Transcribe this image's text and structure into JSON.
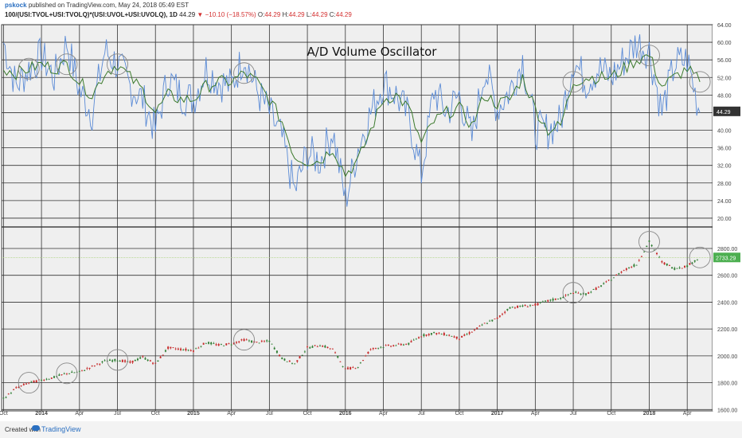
{
  "header": {
    "author": "pskock",
    "published_text": "published on TradingView.com, May 24, 2018 05:49 EST",
    "symbol": "100/(USI:TVOL+USI:TVOLQ)*(USI:UVOL+USI:UVOLQ), 1D",
    "last": "44.29",
    "change": "−10.10 (−18.57%)",
    "o_label": "O:",
    "o": "44.29",
    "h_label": "H:",
    "h": "44.29",
    "l_label": "L:",
    "l": "44.29",
    "c_label": "C:",
    "c": "44.29"
  },
  "footer": {
    "created": "Created with",
    "brand": "TradingView"
  },
  "colors": {
    "osc_line": "#5b8bd6",
    "osc_ma": "#3c7a2d",
    "price_up": "#2e7d32",
    "price_down": "#c62828",
    "grid": "#333333",
    "bg": "#efefef",
    "badge_price": "#4caf50",
    "badge_osc": "#333333"
  },
  "chart_data": [
    {
      "type": "line",
      "title": "A/D Volume Oscillator",
      "ylim": [
        18,
        64
      ],
      "yticks": [
        20,
        24,
        28,
        32,
        36,
        40,
        44,
        48,
        52,
        56,
        60,
        64
      ],
      "ytick_labels": [
        "20.00",
        "24.00",
        "28.00",
        "32.00",
        "36.00",
        "40.00",
        "44.00",
        "48.00",
        "52.00",
        "56.00",
        "60.00",
        "64.00"
      ],
      "last_value_label": "44.29",
      "series": [
        {
          "x": [
            "2013-10",
            "2013-11",
            "2013-12",
            "2014-01",
            "2014-02",
            "2014-03",
            "2014-04",
            "2014-05",
            "2014-06",
            "2014-07",
            "2014-08",
            "2014-09",
            "2014-10",
            "2014-11",
            "2014-12",
            "2015-01",
            "2015-02",
            "2015-03",
            "2015-04",
            "2015-05",
            "2015-06",
            "2015-07",
            "2015-08",
            "2015-09",
            "2015-10",
            "2015-11",
            "2015-12",
            "2016-01",
            "2016-02",
            "2016-03",
            "2016-04",
            "2016-05",
            "2016-06",
            "2016-07",
            "2016-08",
            "2016-09",
            "2016-10",
            "2016-11",
            "2016-12",
            "2017-01",
            "2017-02",
            "2017-03",
            "2017-04",
            "2017-05",
            "2017-06",
            "2017-07",
            "2017-08",
            "2017-09",
            "2017-10",
            "2017-11",
            "2017-12",
            "2018-01",
            "2018-02",
            "2018-03",
            "2018-04",
            "2018-05"
          ],
          "values": [
            60,
            50,
            54,
            57,
            52,
            60,
            49,
            44,
            58,
            55,
            50,
            47,
            40,
            52,
            48,
            47,
            54,
            51,
            50,
            57,
            49,
            44,
            38,
            26,
            35,
            33,
            40,
            24,
            36,
            44,
            51,
            48,
            43,
            30,
            49,
            44,
            48,
            38,
            54,
            45,
            49,
            56,
            40,
            40,
            42,
            56,
            51,
            54,
            52,
            56,
            60,
            58,
            44,
            55,
            56,
            44
          ]
        },
        {
          "x": [
            "2013-10",
            "2013-11",
            "2013-12",
            "2014-01",
            "2014-02",
            "2014-03",
            "2014-04",
            "2014-05",
            "2014-06",
            "2014-07",
            "2014-08",
            "2014-09",
            "2014-10",
            "2014-11",
            "2014-12",
            "2015-01",
            "2015-02",
            "2015-03",
            "2015-04",
            "2015-05",
            "2015-06",
            "2015-07",
            "2015-08",
            "2015-09",
            "2015-10",
            "2015-11",
            "2015-12",
            "2016-01",
            "2016-02",
            "2016-03",
            "2016-04",
            "2016-05",
            "2016-06",
            "2016-07",
            "2016-08",
            "2016-09",
            "2016-10",
            "2016-11",
            "2016-12",
            "2017-01",
            "2017-02",
            "2017-03",
            "2017-04",
            "2017-05",
            "2017-06",
            "2017-07",
            "2017-08",
            "2017-09",
            "2017-10",
            "2017-11",
            "2017-12",
            "2018-01",
            "2018-02",
            "2018-03",
            "2018-04",
            "2018-05"
          ],
          "values": [
            54,
            53,
            54,
            55,
            54,
            55,
            51,
            48,
            53,
            55,
            52,
            49,
            44,
            48,
            47,
            47,
            50,
            51,
            51,
            53,
            51,
            47,
            42,
            34,
            33,
            33,
            36,
            30,
            33,
            40,
            47,
            48,
            45,
            37,
            42,
            44,
            45,
            41,
            48,
            46,
            47,
            52,
            45,
            40,
            41,
            51,
            52,
            52,
            52,
            54,
            56,
            57,
            50,
            52,
            54,
            51
          ]
        }
      ],
      "annotation_circles_at": [
        "2013-12",
        "2014-03",
        "2014-07",
        "2015-05",
        "2017-07",
        "2018-01",
        "2018-05"
      ]
    },
    {
      "type": "candlestick",
      "ylim": [
        1590,
        2960
      ],
      "yticks": [
        1600,
        1800,
        2000,
        2200,
        2400,
        2600,
        2800
      ],
      "ytick_labels": [
        "1600.00",
        "1800.00",
        "2000.00",
        "2200.00",
        "2400.00",
        "2600.00",
        "2800.00"
      ],
      "last_value_label": "2733.29",
      "series": [
        {
          "x": [
            "2013-10",
            "2013-11",
            "2013-12",
            "2014-01",
            "2014-02",
            "2014-03",
            "2014-04",
            "2014-05",
            "2014-06",
            "2014-07",
            "2014-08",
            "2014-09",
            "2014-10",
            "2014-11",
            "2014-12",
            "2015-01",
            "2015-02",
            "2015-03",
            "2015-04",
            "2015-05",
            "2015-06",
            "2015-07",
            "2015-08",
            "2015-09",
            "2015-10",
            "2015-11",
            "2015-12",
            "2016-01",
            "2016-02",
            "2016-03",
            "2016-04",
            "2016-05",
            "2016-06",
            "2016-07",
            "2016-08",
            "2016-09",
            "2016-10",
            "2016-11",
            "2016-12",
            "2017-01",
            "2017-02",
            "2017-03",
            "2017-04",
            "2017-05",
            "2017-06",
            "2017-07",
            "2017-08",
            "2017-09",
            "2017-10",
            "2017-11",
            "2017-12",
            "2018-01",
            "2018-02",
            "2018-03",
            "2018-04",
            "2018-05"
          ],
          "values": [
            1680,
            1760,
            1800,
            1820,
            1840,
            1870,
            1880,
            1920,
            1960,
            1970,
            1950,
            1990,
            1940,
            2060,
            2050,
            2040,
            2100,
            2080,
            2090,
            2120,
            2100,
            2110,
            1980,
            1940,
            2060,
            2080,
            2050,
            1900,
            1920,
            2050,
            2070,
            2080,
            2090,
            2150,
            2170,
            2160,
            2130,
            2180,
            2240,
            2280,
            2360,
            2370,
            2380,
            2410,
            2430,
            2470,
            2460,
            2510,
            2570,
            2640,
            2680,
            2850,
            2700,
            2650,
            2670,
            2733
          ]
        }
      ],
      "annotation_circles_at": [
        "2013-12",
        "2014-03",
        "2014-07",
        "2015-05",
        "2017-07",
        "2018-01",
        "2018-05"
      ]
    }
  ],
  "x_axis": {
    "labels": [
      "Oct",
      "2014",
      "Apr",
      "Jul",
      "Oct",
      "2015",
      "Apr",
      "Jul",
      "Oct",
      "2016",
      "Apr",
      "Jul",
      "Oct",
      "2017",
      "Apr",
      "Jul",
      "Oct",
      "2018",
      "Apr"
    ],
    "label_dates": [
      "2013-10",
      "2014-01",
      "2014-04",
      "2014-07",
      "2014-10",
      "2015-01",
      "2015-04",
      "2015-07",
      "2015-10",
      "2016-01",
      "2016-04",
      "2016-07",
      "2016-10",
      "2017-01",
      "2017-04",
      "2017-07",
      "2017-10",
      "2018-01",
      "2018-04"
    ],
    "bold_labels": [
      "2014",
      "2015",
      "2016",
      "2017",
      "2018"
    ]
  }
}
